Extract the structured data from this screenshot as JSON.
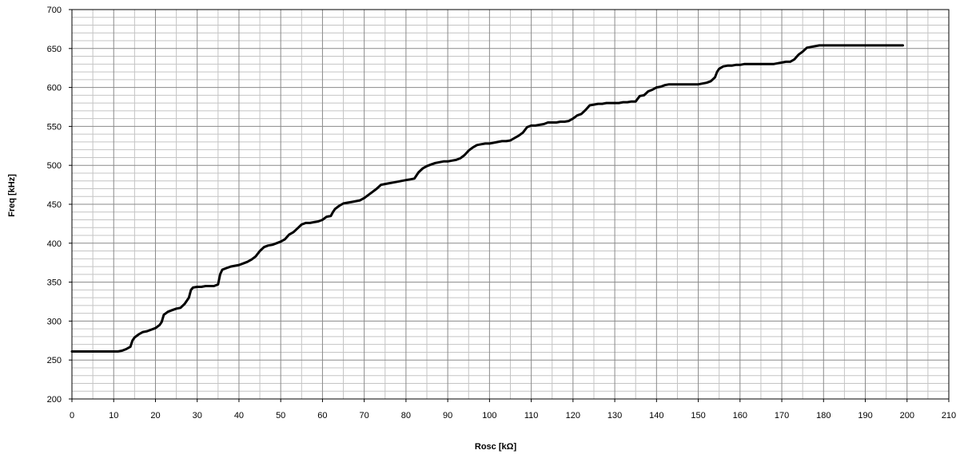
{
  "chart_data": {
    "type": "line",
    "title": "",
    "xlabel": "Rosc [kΩ]",
    "ylabel": "Freq [kHz]",
    "xlim": [
      0,
      210
    ],
    "ylim": [
      200,
      700
    ],
    "x_ticks": [
      "0",
      "10",
      "20",
      "30",
      "40",
      "50",
      "60",
      "70",
      "80",
      "90",
      "100",
      "110",
      "120",
      "130",
      "140",
      "150",
      "160",
      "170",
      "180",
      "190",
      "200",
      "210"
    ],
    "y_ticks": [
      "200",
      "250",
      "300",
      "350",
      "400",
      "450",
      "500",
      "550",
      "600",
      "650",
      "700"
    ],
    "grid": {
      "major": true,
      "minor_x_step": 5,
      "minor_y_step": 10
    },
    "line_color": "#000000",
    "series": [
      {
        "points": [
          [
            0,
            261
          ],
          [
            11,
            261
          ],
          [
            12,
            262
          ],
          [
            13,
            264
          ],
          [
            14,
            267
          ],
          [
            14.5,
            275
          ],
          [
            15,
            279
          ],
          [
            16,
            283
          ],
          [
            17,
            286
          ],
          [
            18,
            287
          ],
          [
            19,
            289
          ],
          [
            20,
            291
          ],
          [
            21,
            295
          ],
          [
            21.5,
            299
          ],
          [
            22,
            308
          ],
          [
            23,
            312
          ],
          [
            24,
            314
          ],
          [
            25,
            316
          ],
          [
            26,
            317
          ],
          [
            27,
            322
          ],
          [
            28,
            330
          ],
          [
            28.5,
            340
          ],
          [
            29,
            343
          ],
          [
            30,
            344
          ],
          [
            31,
            344
          ],
          [
            32,
            345
          ],
          [
            33,
            345
          ],
          [
            34,
            345
          ],
          [
            35,
            347
          ],
          [
            35.5,
            360
          ],
          [
            36,
            366
          ],
          [
            37,
            368
          ],
          [
            38,
            370
          ],
          [
            39,
            371
          ],
          [
            40,
            372
          ],
          [
            41,
            374
          ],
          [
            42,
            376
          ],
          [
            43,
            379
          ],
          [
            44,
            383
          ],
          [
            45,
            390
          ],
          [
            46,
            395
          ],
          [
            47,
            397
          ],
          [
            48,
            398
          ],
          [
            49,
            400
          ],
          [
            50,
            402
          ],
          [
            51,
            405
          ],
          [
            52,
            411
          ],
          [
            53,
            414
          ],
          [
            54,
            419
          ],
          [
            55,
            424
          ],
          [
            56,
            426
          ],
          [
            57,
            426
          ],
          [
            58,
            427
          ],
          [
            59,
            428
          ],
          [
            60,
            430
          ],
          [
            61,
            434
          ],
          [
            62,
            435
          ],
          [
            62.5,
            440
          ],
          [
            63,
            444
          ],
          [
            64,
            448
          ],
          [
            65,
            451
          ],
          [
            66,
            452
          ],
          [
            67,
            453
          ],
          [
            68,
            454
          ],
          [
            69,
            455
          ],
          [
            70,
            458
          ],
          [
            71,
            462
          ],
          [
            72,
            466
          ],
          [
            73,
            470
          ],
          [
            74,
            475
          ],
          [
            75,
            476
          ],
          [
            76,
            477
          ],
          [
            77,
            478
          ],
          [
            78,
            479
          ],
          [
            79,
            480
          ],
          [
            80,
            481
          ],
          [
            81,
            482
          ],
          [
            82,
            483
          ],
          [
            83,
            491
          ],
          [
            84,
            496
          ],
          [
            85,
            499
          ],
          [
            86,
            501
          ],
          [
            87,
            503
          ],
          [
            88,
            504
          ],
          [
            89,
            505
          ],
          [
            90,
            505
          ],
          [
            91,
            506
          ],
          [
            92,
            507
          ],
          [
            93,
            509
          ],
          [
            94,
            513
          ],
          [
            95,
            519
          ],
          [
            96,
            523
          ],
          [
            97,
            526
          ],
          [
            98,
            527
          ],
          [
            99,
            528
          ],
          [
            100,
            528
          ],
          [
            101,
            529
          ],
          [
            102,
            530
          ],
          [
            103,
            531
          ],
          [
            104,
            531
          ],
          [
            105,
            532
          ],
          [
            106,
            535
          ],
          [
            107,
            538
          ],
          [
            108,
            542
          ],
          [
            109,
            549
          ],
          [
            110,
            551
          ],
          [
            111,
            551
          ],
          [
            112,
            552
          ],
          [
            113,
            553
          ],
          [
            114,
            555
          ],
          [
            115,
            555
          ],
          [
            116,
            555
          ],
          [
            117,
            556
          ],
          [
            118,
            556
          ],
          [
            119,
            557
          ],
          [
            120,
            560
          ],
          [
            121,
            564
          ],
          [
            122,
            566
          ],
          [
            123,
            571
          ],
          [
            124,
            577
          ],
          [
            125,
            578
          ],
          [
            126,
            579
          ],
          [
            127,
            579
          ],
          [
            128,
            580
          ],
          [
            129,
            580
          ],
          [
            130,
            580
          ],
          [
            131,
            580
          ],
          [
            132,
            581
          ],
          [
            133,
            581
          ],
          [
            134,
            582
          ],
          [
            135,
            582
          ],
          [
            136,
            589
          ],
          [
            137,
            590
          ],
          [
            138,
            595
          ],
          [
            139,
            597
          ],
          [
            140,
            600
          ],
          [
            141,
            601
          ],
          [
            142,
            603
          ],
          [
            143,
            604
          ],
          [
            144,
            604
          ],
          [
            145,
            604
          ],
          [
            146,
            604
          ],
          [
            147,
            604
          ],
          [
            148,
            604
          ],
          [
            149,
            604
          ],
          [
            150,
            604
          ],
          [
            151,
            605
          ],
          [
            152,
            606
          ],
          [
            153,
            608
          ],
          [
            154,
            613
          ],
          [
            154.5,
            620
          ],
          [
            155,
            624
          ],
          [
            156,
            627
          ],
          [
            157,
            628
          ],
          [
            158,
            628
          ],
          [
            159,
            629
          ],
          [
            160,
            629
          ],
          [
            161,
            630
          ],
          [
            162,
            630
          ],
          [
            163,
            630
          ],
          [
            164,
            630
          ],
          [
            165,
            630
          ],
          [
            166,
            630
          ],
          [
            167,
            630
          ],
          [
            168,
            630
          ],
          [
            169,
            631
          ],
          [
            170,
            632
          ],
          [
            171,
            633
          ],
          [
            172,
            633
          ],
          [
            173,
            636
          ],
          [
            174,
            642
          ],
          [
            175,
            646
          ],
          [
            176,
            651
          ],
          [
            177,
            652
          ],
          [
            178,
            653
          ],
          [
            179,
            654
          ],
          [
            180,
            654
          ],
          [
            181,
            654
          ],
          [
            182,
            654
          ],
          [
            190,
            654
          ],
          [
            199,
            654
          ]
        ]
      }
    ]
  }
}
